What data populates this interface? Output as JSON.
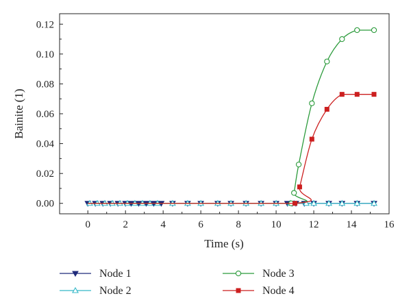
{
  "chart_data": {
    "type": "line",
    "xlabel": "Time (s)",
    "ylabel": "Bainite (1)",
    "xlim": [
      -1.5,
      16
    ],
    "ylim": [
      -0.007,
      0.127
    ],
    "x_ticks": [
      0,
      2,
      4,
      6,
      8,
      10,
      12,
      14,
      16
    ],
    "y_ticks": [
      "0.00",
      "0.02",
      "0.04",
      "0.06",
      "0.08",
      "0.10",
      "0.12"
    ],
    "grid": false,
    "legend_position": "bottom",
    "series": [
      {
        "name": "Node 1",
        "color": "#1f2a7a",
        "marker": "triangle-down-filled",
        "x": [
          0,
          0.4,
          0.8,
          1.2,
          1.6,
          2.0,
          2.3,
          2.7,
          3.1,
          3.5,
          3.9,
          4.5,
          5.3,
          6.0,
          6.9,
          7.6,
          8.4,
          9.2,
          10.0,
          10.6,
          10.85,
          11.05,
          11.5,
          12.0,
          12.8,
          13.5,
          14.3,
          15.2
        ],
        "y": [
          0,
          0,
          0,
          0,
          0,
          0,
          0,
          0,
          0,
          0,
          0,
          0,
          0,
          0,
          0,
          0,
          0,
          0,
          0,
          0,
          0,
          0,
          0,
          0,
          0,
          0,
          0,
          0
        ]
      },
      {
        "name": "Node 2",
        "color": "#35b8c8",
        "marker": "triangle-up-open",
        "x": [
          0.1,
          0.5,
          0.9,
          1.3,
          1.7,
          2.1,
          2.5,
          2.9,
          3.3,
          3.7,
          4.5,
          5.3,
          6.0,
          6.9,
          7.6,
          8.4,
          9.2,
          10.0,
          10.75,
          10.95,
          11.6,
          12.0,
          12.8,
          13.5,
          14.3,
          15.2
        ],
        "y": [
          0,
          0,
          0,
          0,
          0,
          0,
          0,
          0,
          0,
          0,
          0,
          0,
          0,
          0,
          0,
          0,
          0,
          0,
          0,
          0,
          0,
          0,
          0,
          0,
          0,
          0
        ]
      },
      {
        "name": "Node 3",
        "color": "#2a9a3a",
        "marker": "circle-open",
        "x": [
          10.8,
          10.95,
          11.2,
          11.9,
          12.7,
          13.5,
          14.3,
          15.2
        ],
        "y": [
          0.0,
          0.007,
          0.026,
          0.067,
          0.095,
          0.11,
          0.116,
          0.116
        ]
      },
      {
        "name": "Node 4",
        "color": "#cc1f1f",
        "marker": "square-filled",
        "x": [
          11.0,
          11.25,
          11.9,
          12.7,
          13.5,
          14.3,
          15.2
        ],
        "y": [
          0.0,
          0.011,
          0.043,
          0.063,
          0.073,
          0.073,
          0.073
        ]
      }
    ]
  }
}
